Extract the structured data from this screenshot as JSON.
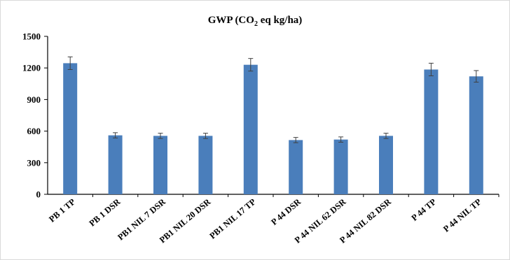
{
  "chart_data": {
    "type": "bar",
    "title": "GWP (CO",
    "title_sub": "2",
    "title_suffix": " eq kg/ha)",
    "xlabel": "",
    "ylabel": "",
    "ylim": [
      0,
      1500
    ],
    "yticks": [
      0,
      300,
      600,
      900,
      1200,
      1500
    ],
    "grid": false,
    "legend": "none",
    "bar_color": "#4a7ebb",
    "error_color": "#404040",
    "categories": [
      "PB 1 TP",
      "PB 1 DSR",
      "PB1 NIL 7 DSR",
      "PB1 NIL 20 DSR",
      "PB1 NIL 17 TP",
      "P 44 DSR",
      "P 44 NIL 62 DSR",
      "P 44 NIL 82 DSR",
      "P 44 TP",
      "P 44 NIL TP"
    ],
    "values": [
      1245,
      560,
      555,
      555,
      1230,
      515,
      520,
      555,
      1185,
      1120
    ],
    "errors": [
      60,
      25,
      25,
      25,
      60,
      25,
      25,
      25,
      60,
      55
    ]
  }
}
